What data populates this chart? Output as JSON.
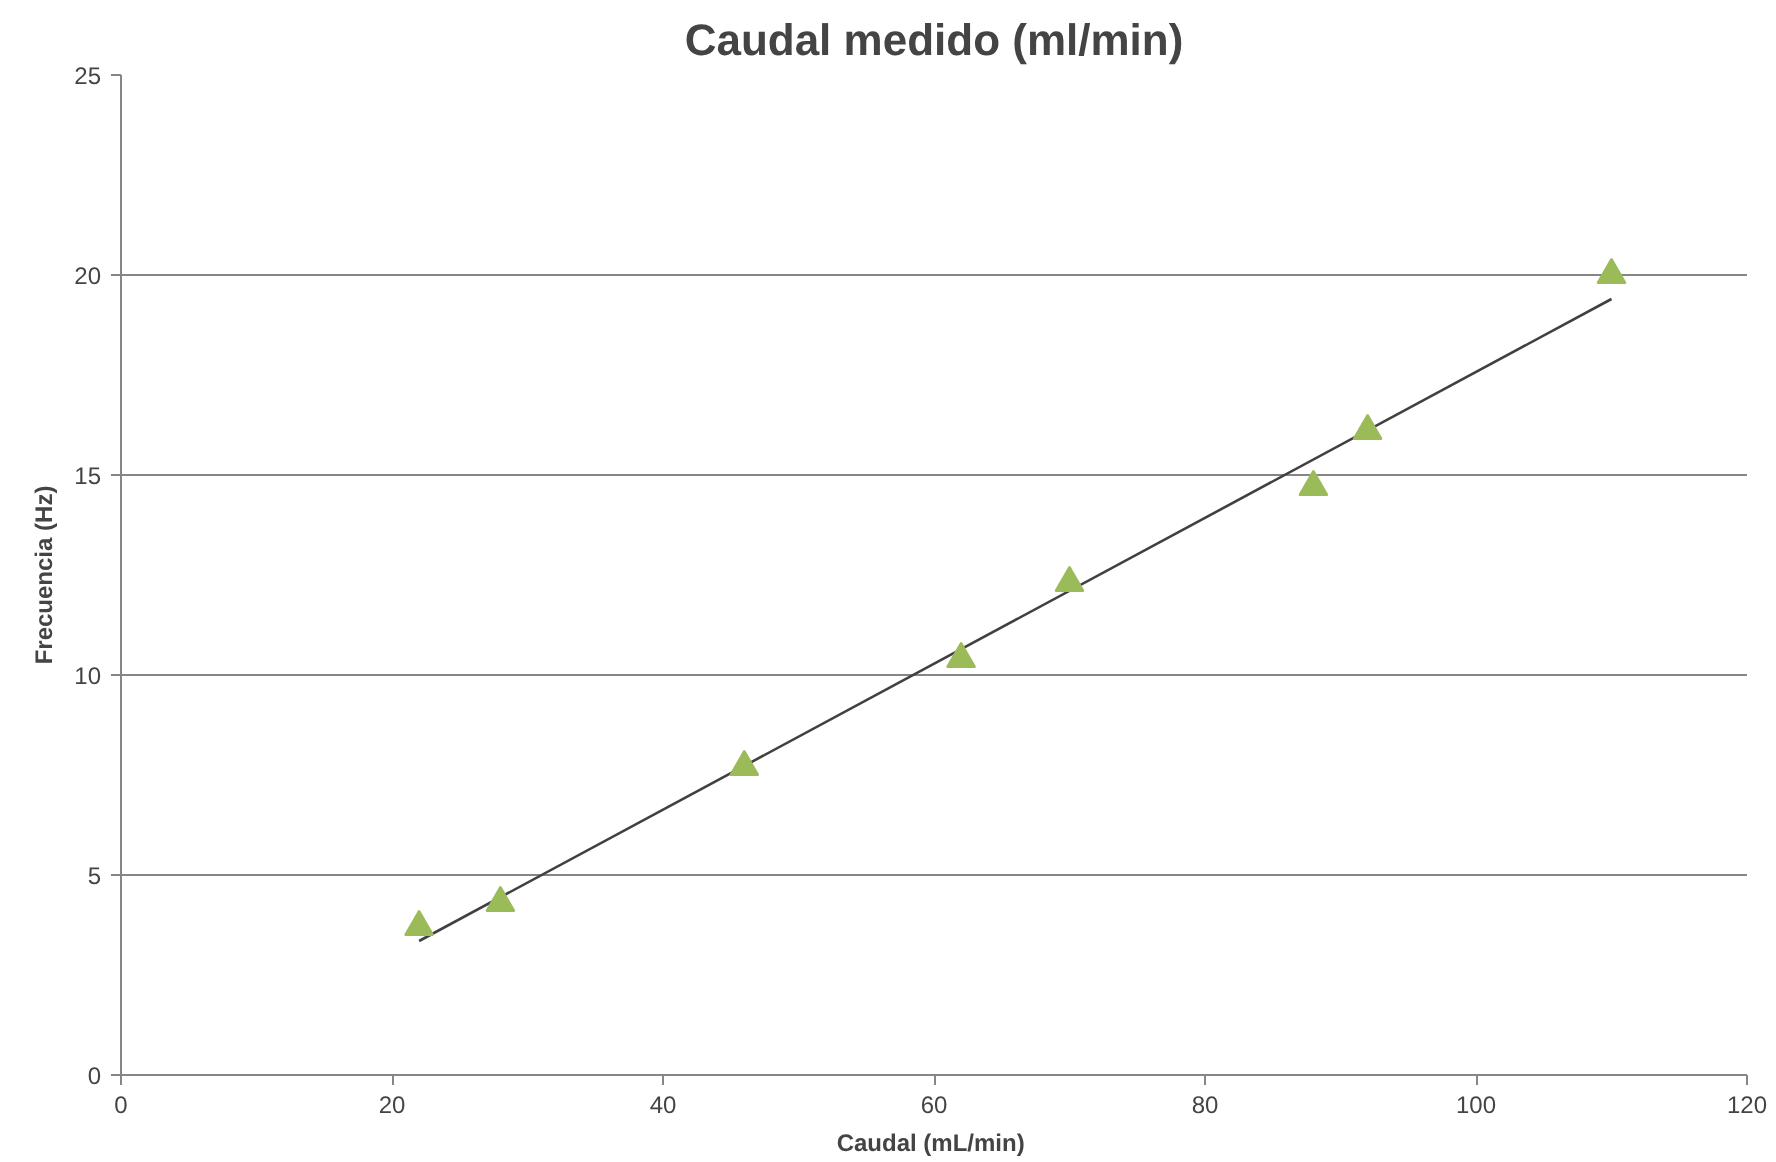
{
  "chart_data": {
    "type": "scatter",
    "title": "Caudal medido (ml/min)",
    "xlabel": "Caudal  (mL/min)",
    "ylabel": "Frecuencia (Hz)",
    "x": [
      22,
      28,
      46,
      62,
      70,
      88,
      92,
      110
    ],
    "series": [
      {
        "color": "#9bbb59",
        "values": [
          3.7,
          4.3,
          7.7,
          10.4,
          12.3,
          14.7,
          16.1,
          20.0
        ],
        "marker": "triangle"
      },
      {
        "type": "line",
        "color": "#404040",
        "x": [
          22,
          110
        ],
        "values": [
          3.35,
          19.4
        ],
        "marker": "none",
        "line_style": "solid"
      }
    ],
    "xlim": [
      0,
      120
    ],
    "xticks": [
      0,
      20,
      40,
      60,
      80,
      100,
      120
    ],
    "ylim": [
      0,
      25
    ],
    "yticks": [
      0,
      5,
      10,
      15,
      20,
      25
    ],
    "grid": "y"
  }
}
